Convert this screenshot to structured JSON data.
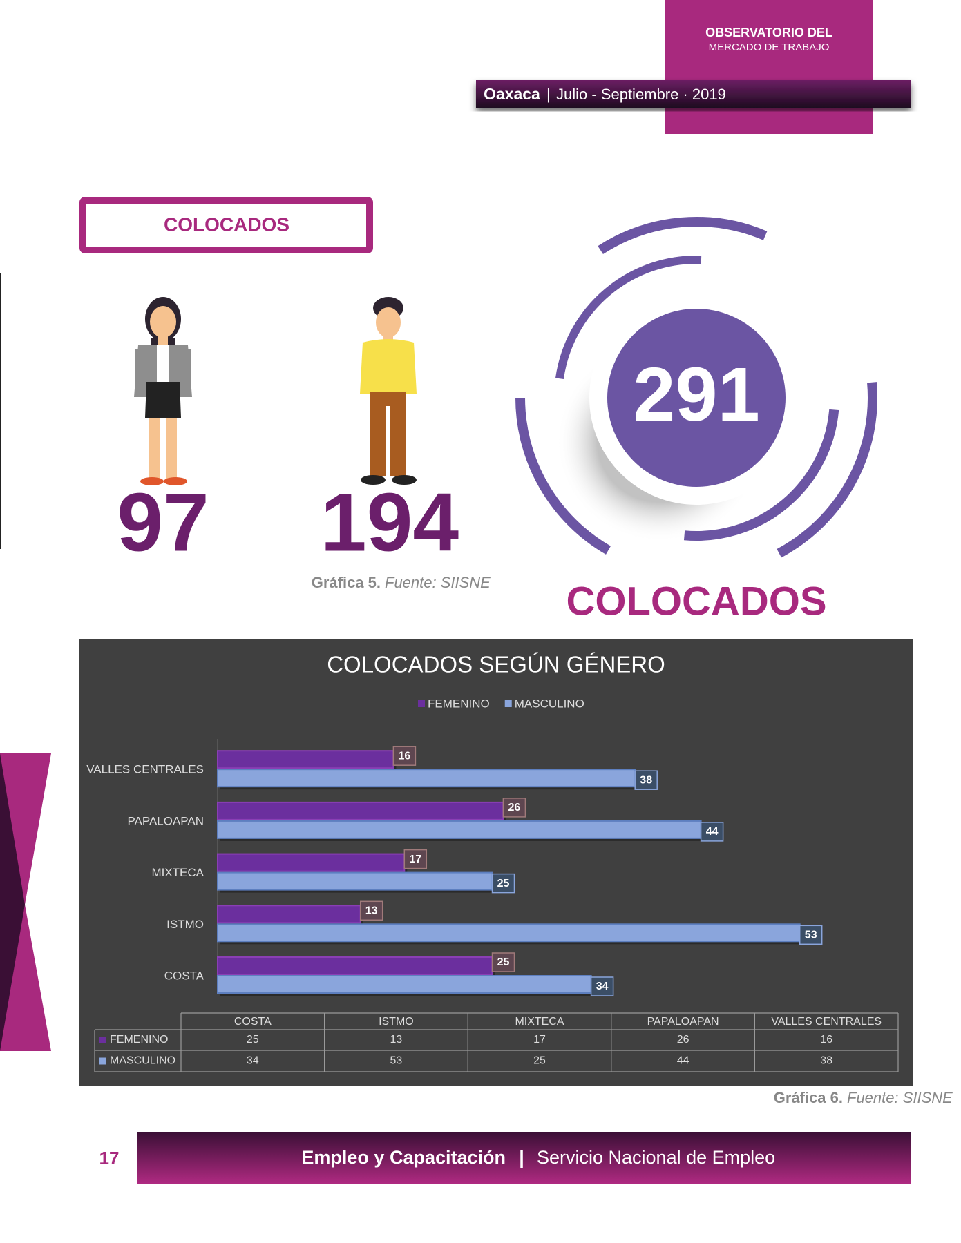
{
  "header": {
    "org_line1": "OBSERVATORIO DEL",
    "org_line2": "MERCADO DE TRABAJO",
    "state": "Oaxaca",
    "separator": "|",
    "period": "Julio - Septiembre · 2019"
  },
  "section_title": "COLOCADOS",
  "infographic": {
    "women": 97,
    "men": 194,
    "total": 291,
    "total_label": "COLOCADOS",
    "caption_label": "Gráfica 5.",
    "caption_source": "Fuente: SIISNE"
  },
  "chart_data": {
    "type": "hbar",
    "title": "COLOCADOS SEGÚN GÉNERO",
    "categories": [
      "COSTA",
      "ISTMO",
      "MIXTECA",
      "PAPALOAPAN",
      "VALLES CENTRALES"
    ],
    "series": [
      {
        "name": "FEMENINO",
        "color": "#6b2f9e",
        "values": [
          25,
          13,
          17,
          26,
          16
        ]
      },
      {
        "name": "MASCULINO",
        "color": "#8aa5dc",
        "values": [
          34,
          53,
          25,
          44,
          38
        ]
      }
    ],
    "legend": "top",
    "data_table": true
  },
  "chart_caption": {
    "label": "Gráfica 6.",
    "source": "Fuente: SIISNE"
  },
  "footer": {
    "page": "17",
    "left": "Empleo y Capacitación",
    "separator": "|",
    "right": "Servicio Nacional de Empleo"
  }
}
